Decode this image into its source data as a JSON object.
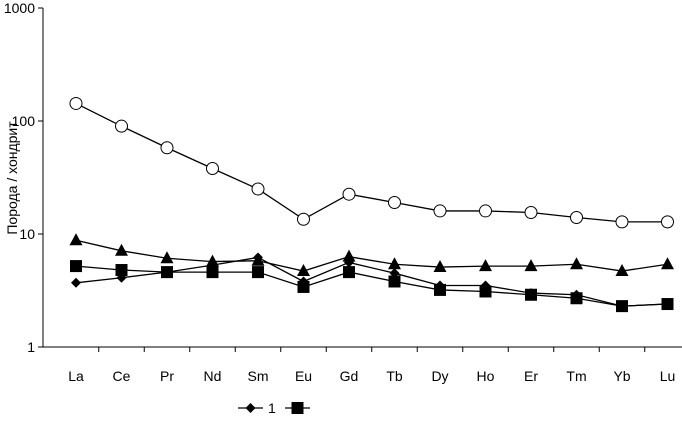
{
  "chart_data": {
    "type": "line",
    "title": "",
    "xlabel": "",
    "ylabel": "Порода / хондрит",
    "yscale": "log",
    "ylim": [
      1,
      1000
    ],
    "yticks": [
      "1",
      "10",
      "100",
      "1000"
    ],
    "grid": false,
    "legend_position": "bottom",
    "categories": [
      "La",
      "Ce",
      "Pr",
      "Nd",
      "Sm",
      "Eu",
      "Gd",
      "Tb",
      "Dy",
      "Ho",
      "Er",
      "Tm",
      "Yb",
      "Lu"
    ],
    "series": [
      {
        "name": "",
        "marker": "circle-open",
        "in_legend": false,
        "values": [
          143,
          90,
          58,
          38,
          25,
          13.5,
          22.5,
          19,
          16,
          16,
          15.5,
          14,
          12.8,
          12.8
        ]
      },
      {
        "name": "",
        "marker": "triangle",
        "in_legend": false,
        "values": [
          8.8,
          7.1,
          6.1,
          5.7,
          5.8,
          4.7,
          6.3,
          5.4,
          5.1,
          5.2,
          5.2,
          5.4,
          4.7,
          5.4
        ]
      },
      {
        "name": "1",
        "marker": "diamond",
        "in_legend": true,
        "values": [
          3.7,
          4.1,
          4.6,
          5.3,
          6.2,
          3.8,
          5.6,
          4.5,
          3.5,
          3.5,
          3.0,
          2.9,
          2.3,
          2.4
        ]
      },
      {
        "name": "",
        "marker": "square",
        "in_legend": true,
        "values": [
          5.2,
          4.8,
          4.6,
          4.6,
          4.6,
          3.4,
          4.6,
          3.8,
          3.2,
          3.1,
          2.9,
          2.7,
          2.3,
          2.4
        ]
      }
    ]
  }
}
